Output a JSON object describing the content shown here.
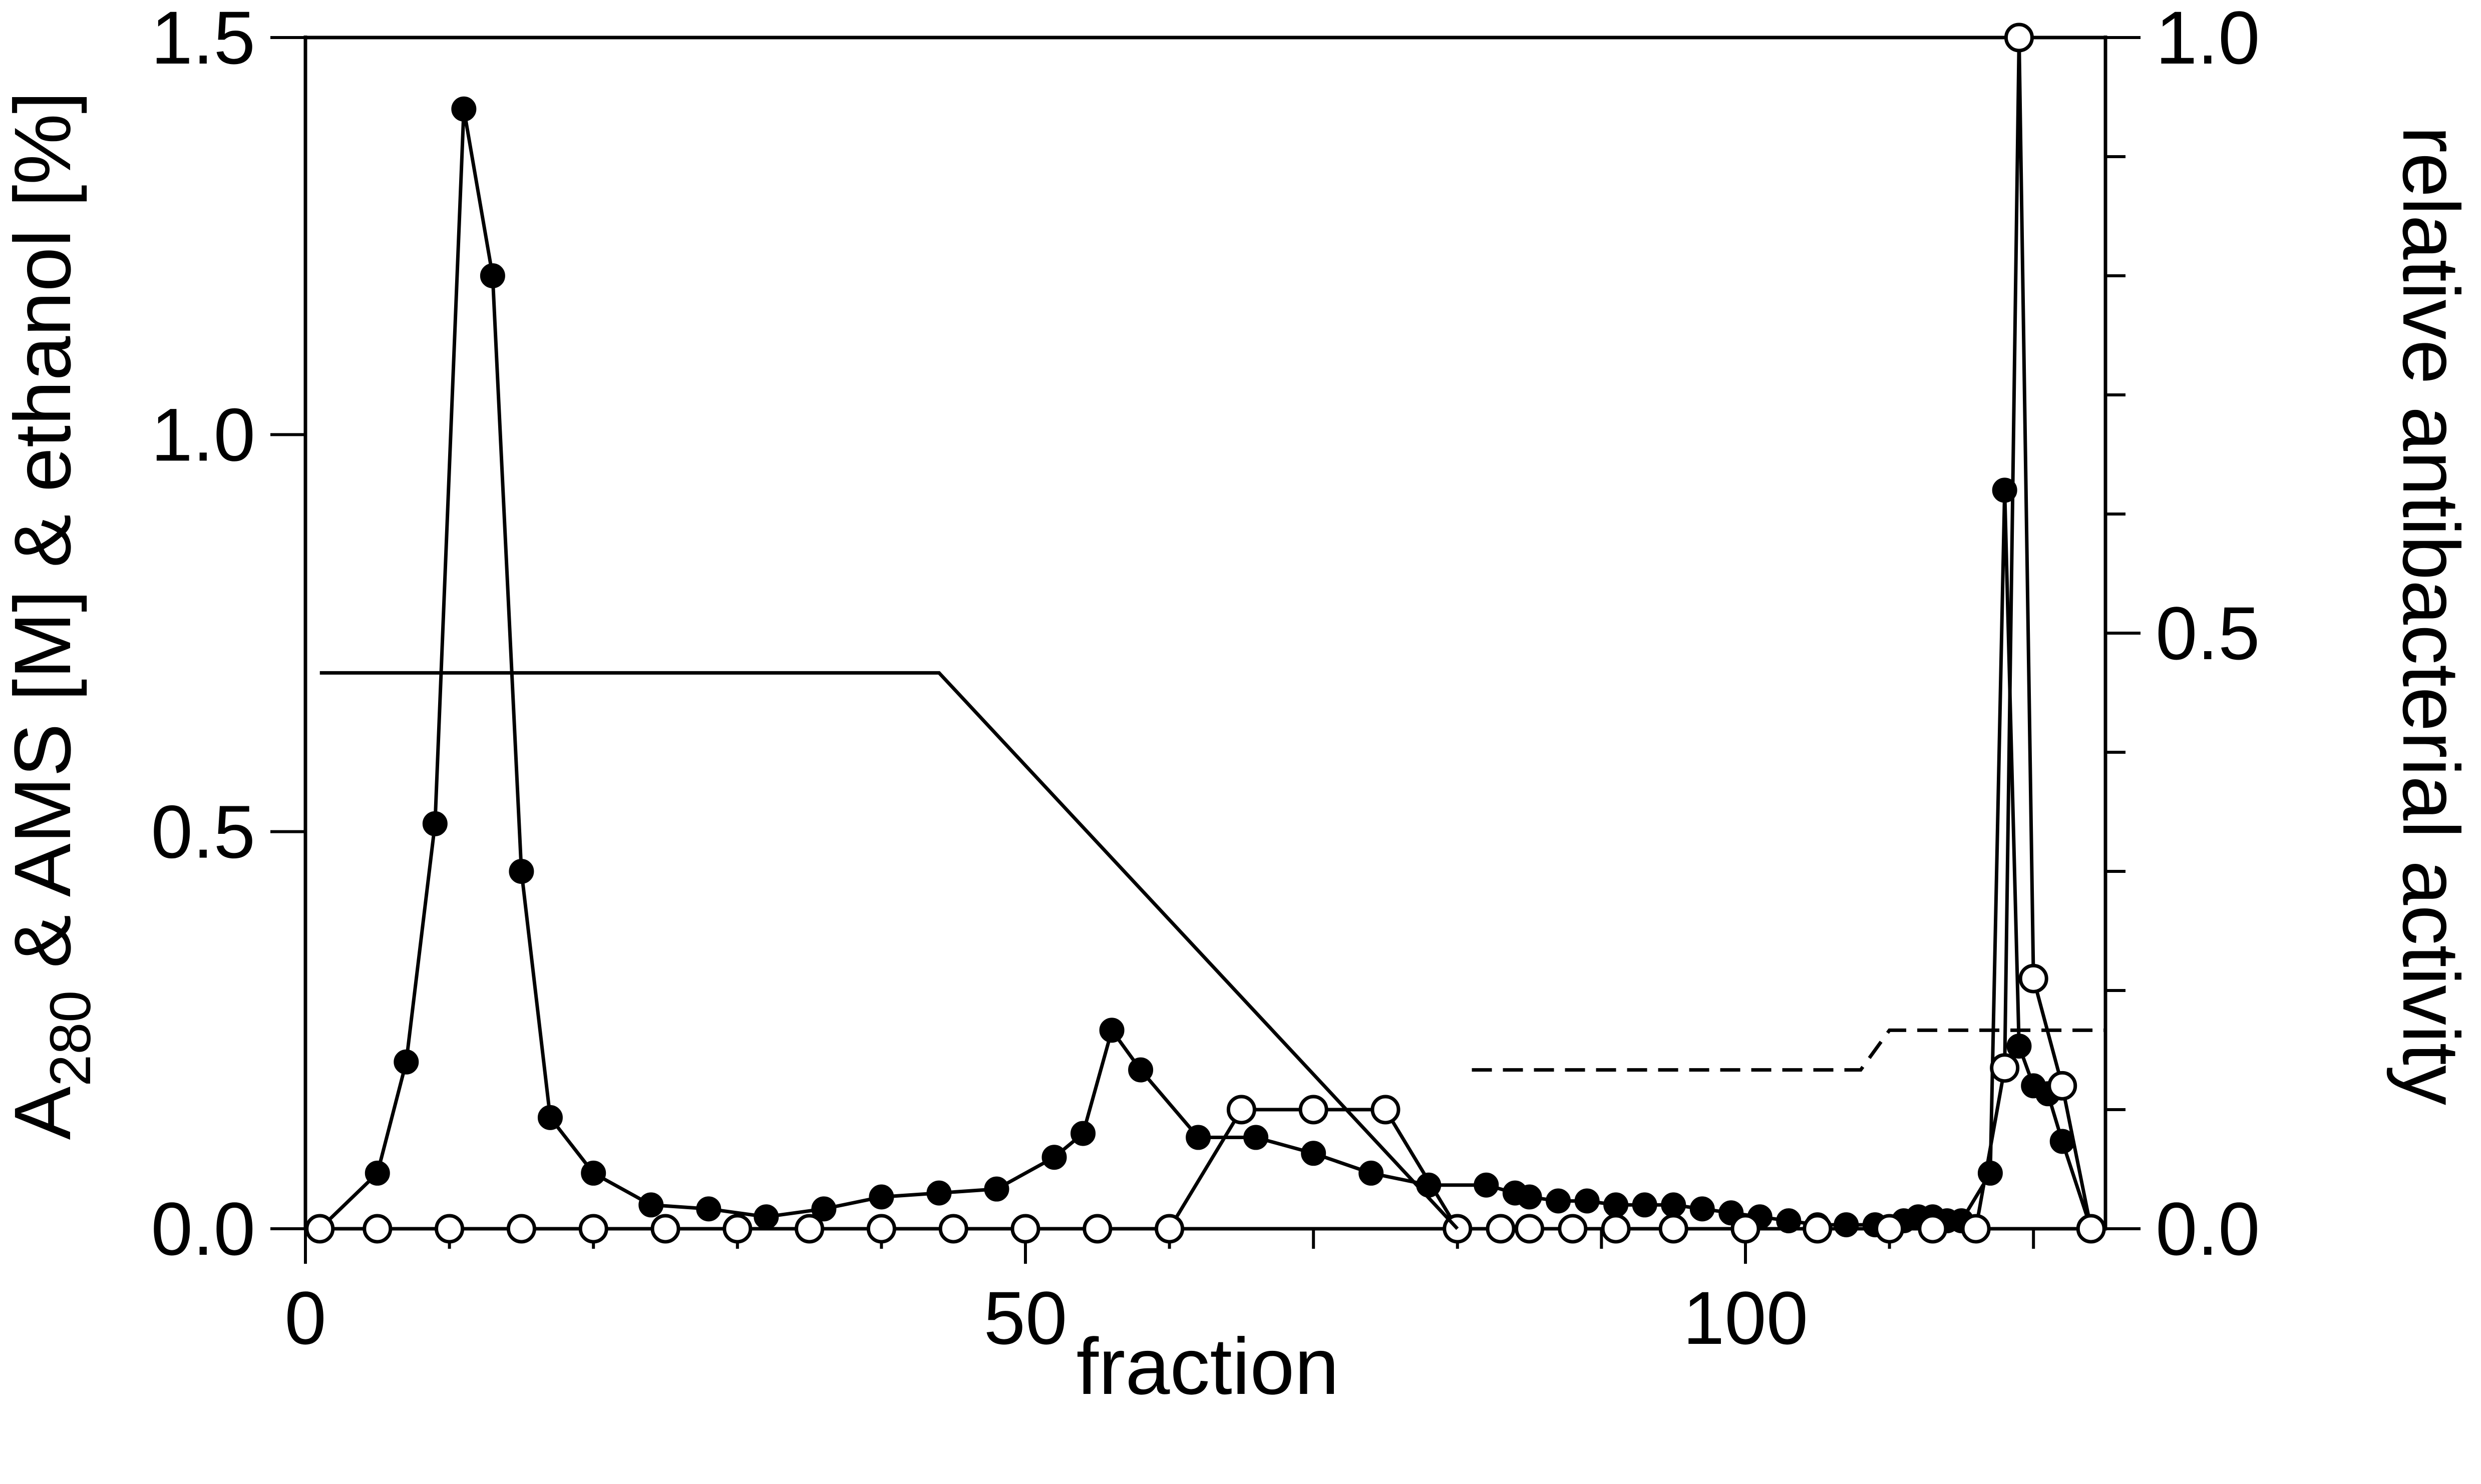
{
  "chart_data": {
    "type": "line",
    "title": "",
    "xlabel": "fraction",
    "ylabel_left": {
      "main": "A",
      "subscript": "280",
      "rest": " & AMS [M] & ethanol [%]"
    },
    "ylabel_right": "relative antibacterial activity",
    "xlim": [
      0,
      125
    ],
    "ylim_left": [
      0,
      1.5
    ],
    "ylim_right": [
      0,
      1.0
    ],
    "x_ticks": [
      0,
      50,
      100
    ],
    "x_tick_labels": [
      "0",
      "50",
      "100"
    ],
    "y_left_ticks": [
      0.0,
      0.5,
      1.0,
      1.5
    ],
    "y_left_tick_labels": [
      "0.0",
      "0.5",
      "1.0",
      "1.5"
    ],
    "y_right_ticks": [
      0.0,
      0.5,
      1.0
    ],
    "y_right_tick_labels": [
      "0.0",
      "0.5",
      "1.0"
    ],
    "grid": false,
    "legend": "none",
    "series": [
      {
        "axis": "left",
        "style": "filled-markers",
        "x": [
          1,
          5,
          7,
          9,
          11,
          13,
          15,
          17,
          20,
          24,
          28,
          32,
          36,
          40,
          44,
          48,
          52,
          54,
          56,
          58,
          62,
          66,
          70,
          74,
          78,
          82,
          84,
          85,
          87,
          89,
          91,
          93,
          95,
          97,
          99,
          101,
          103,
          105,
          107,
          109,
          111,
          112,
          113,
          114,
          115,
          117,
          118,
          119,
          120,
          121,
          122,
          124
        ],
        "y": [
          0.0,
          0.07,
          0.21,
          0.51,
          1.41,
          1.2,
          0.45,
          0.14,
          0.07,
          0.03,
          0.025,
          0.015,
          0.025,
          0.04,
          0.045,
          0.05,
          0.09,
          0.12,
          0.25,
          0.2,
          0.115,
          0.115,
          0.095,
          0.07,
          0.055,
          0.055,
          0.045,
          0.04,
          0.035,
          0.035,
          0.03,
          0.03,
          0.03,
          0.025,
          0.02,
          0.015,
          0.01,
          0.005,
          0.005,
          0.005,
          0.01,
          0.015,
          0.015,
          0.01,
          0.01,
          0.07,
          0.93,
          0.23,
          0.18,
          0.17,
          0.11,
          0.0
        ]
      },
      {
        "axis": "right",
        "style": "open-markers",
        "x": [
          1,
          5,
          10,
          15,
          20,
          25,
          30,
          35,
          40,
          45,
          50,
          55,
          60,
          65,
          70,
          75,
          80,
          83,
          85,
          88,
          91,
          95,
          100,
          105,
          110,
          113,
          116,
          118,
          119,
          120,
          122,
          124
        ],
        "y": [
          0.0,
          0.0,
          0.0,
          0.0,
          0.0,
          0.0,
          0.0,
          0.0,
          0.0,
          0.0,
          0.0,
          0.0,
          0.0,
          0.1,
          0.1,
          0.1,
          0.0,
          0.0,
          0.0,
          0.0,
          0.0,
          0.0,
          0.0,
          0.0,
          0.0,
          0.0,
          0.0,
          0.135,
          1.0,
          0.21,
          0.12,
          0.0
        ]
      },
      {
        "axis": "left",
        "style": "solid-line",
        "x": [
          1,
          44,
          80
        ],
        "y": [
          0.7,
          0.7,
          0.0
        ]
      },
      {
        "axis": "left",
        "style": "dashed-line",
        "x": [
          81,
          108,
          110,
          125
        ],
        "y": [
          0.2,
          0.2,
          0.25,
          0.25
        ]
      }
    ]
  }
}
